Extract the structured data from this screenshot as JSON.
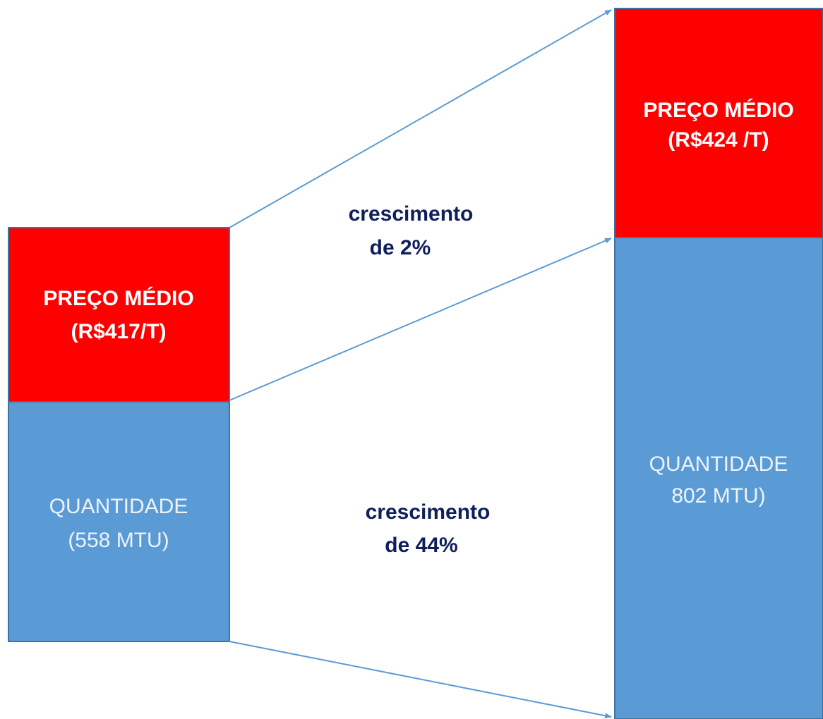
{
  "before": {
    "price": [
      "PREÇO MÉDIO",
      "(R$417/T)"
    ],
    "quantity": [
      "QUANTIDADE",
      "(558 MTU)"
    ]
  },
  "after": {
    "price": [
      "PREÇO MÉDIO",
      "(R$424 /T)"
    ],
    "quantity": [
      "QUANTIDADE",
      "802 MTU)"
    ]
  },
  "growth": {
    "price": [
      "crescimento",
      "de 2%"
    ],
    "quantity": [
      "crescimento",
      "de 44%"
    ]
  }
}
